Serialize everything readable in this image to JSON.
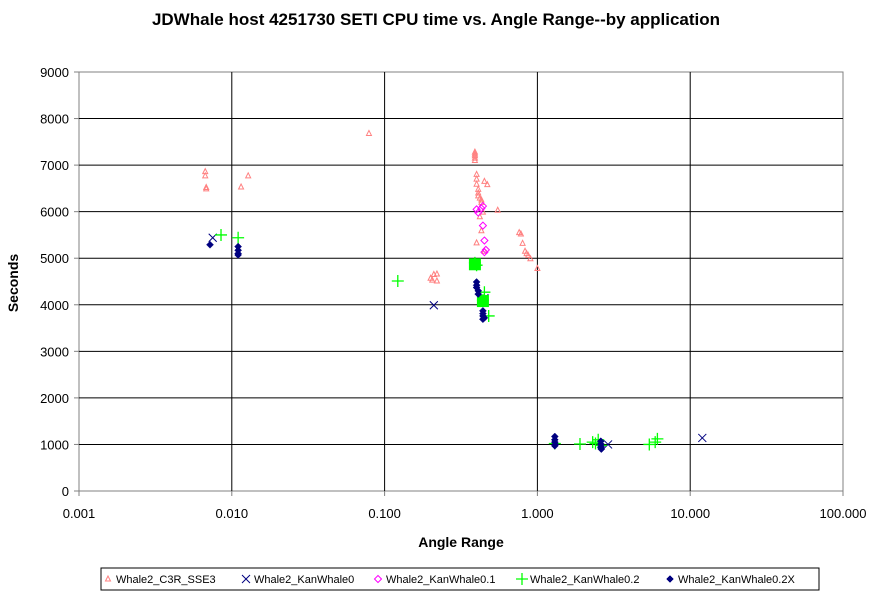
{
  "chart_data": {
    "type": "scatter",
    "title": "JDWhale host 4251730 SETI CPU time vs. Angle Range--by application",
    "xlabel": "Angle Range",
    "ylabel": "Seconds",
    "xscale": "log",
    "xlim": [
      0.001,
      100
    ],
    "ylim": [
      0,
      9000
    ],
    "x_ticks": [
      "0.001",
      "0.010",
      "0.100",
      "1.000",
      "10.000",
      "100.000"
    ],
    "y_ticks": [
      "0",
      "1000",
      "2000",
      "3000",
      "4000",
      "5000",
      "6000",
      "7000",
      "8000",
      "9000"
    ],
    "grid": true,
    "legend_position": "bottom",
    "series": [
      {
        "name": "Whale2_C3R_SSE3",
        "color": "#ff8080",
        "marker": "triangle",
        "points": [
          [
            0.0067,
            6860
          ],
          [
            0.0067,
            6770
          ],
          [
            0.0068,
            6520
          ],
          [
            0.0068,
            6490
          ],
          [
            0.0115,
            6530
          ],
          [
            0.0128,
            6770
          ],
          [
            0.079,
            7680
          ],
          [
            0.2,
            4570
          ],
          [
            0.21,
            4650
          ],
          [
            0.205,
            4530
          ],
          [
            0.22,
            4510
          ],
          [
            0.22,
            4660
          ],
          [
            0.39,
            7280
          ],
          [
            0.39,
            7240
          ],
          [
            0.39,
            7200
          ],
          [
            0.39,
            7150
          ],
          [
            0.39,
            7100
          ],
          [
            0.4,
            6800
          ],
          [
            0.4,
            6700
          ],
          [
            0.4,
            6590
          ],
          [
            0.41,
            6480
          ],
          [
            0.41,
            6400
          ],
          [
            0.41,
            6340
          ],
          [
            0.42,
            6290
          ],
          [
            0.43,
            6250
          ],
          [
            0.43,
            6200
          ],
          [
            0.45,
            6650
          ],
          [
            0.47,
            6580
          ],
          [
            0.44,
            5990
          ],
          [
            0.42,
            5890
          ],
          [
            0.43,
            5590
          ],
          [
            0.4,
            5330
          ],
          [
            0.45,
            5150
          ],
          [
            0.55,
            6030
          ],
          [
            0.76,
            5550
          ],
          [
            0.78,
            5520
          ],
          [
            0.8,
            5320
          ],
          [
            0.83,
            5150
          ],
          [
            0.85,
            5100
          ],
          [
            0.87,
            5060
          ],
          [
            0.9,
            4990
          ],
          [
            1.0,
            4780
          ]
        ]
      },
      {
        "name": "Whale2_KanWhale0",
        "color": "#000080",
        "marker": "x",
        "points": [
          [
            0.0075,
            5440
          ],
          [
            0.21,
            3990
          ],
          [
            0.45,
            4140
          ],
          [
            2.9,
            1000
          ],
          [
            12.0,
            1140
          ]
        ]
      },
      {
        "name": "Whale2_KanWhale0.1",
        "color": "#ff00ff",
        "marker": "diamond",
        "points": [
          [
            0.4,
            6050
          ],
          [
            0.41,
            5980
          ],
          [
            0.43,
            6070
          ],
          [
            0.44,
            6120
          ],
          [
            0.44,
            5700
          ],
          [
            0.45,
            5380
          ],
          [
            0.45,
            5130
          ],
          [
            0.46,
            5180
          ]
        ]
      },
      {
        "name": "Whale2_KanWhale0.2",
        "color": "#00ff00",
        "marker": "plus",
        "points": [
          [
            0.0085,
            5500
          ],
          [
            0.011,
            5440
          ],
          [
            0.122,
            4510
          ],
          [
            0.39,
            4900
          ],
          [
            0.4,
            4850
          ],
          [
            0.44,
            4100
          ],
          [
            0.45,
            4270
          ],
          [
            0.48,
            3760
          ],
          [
            1.3,
            1020
          ],
          [
            1.9,
            1010
          ],
          [
            2.3,
            1050
          ],
          [
            2.5,
            1100
          ],
          [
            2.6,
            980
          ],
          [
            5.4,
            1000
          ],
          [
            5.9,
            1050
          ],
          [
            6.1,
            1120
          ],
          [
            2.4,
            1020
          ]
        ]
      },
      {
        "name": "Whale2_KanWhale0.2X",
        "color": "#000080",
        "marker": "filled-diamond",
        "points": [
          [
            0.0072,
            5290
          ],
          [
            0.011,
            5250
          ],
          [
            0.011,
            5170
          ],
          [
            0.011,
            5100
          ],
          [
            0.011,
            5070
          ],
          [
            0.4,
            4490
          ],
          [
            0.4,
            4420
          ],
          [
            0.4,
            4370
          ],
          [
            0.41,
            4300
          ],
          [
            0.41,
            4230
          ],
          [
            0.44,
            3870
          ],
          [
            0.44,
            3810
          ],
          [
            0.44,
            3760
          ],
          [
            0.45,
            3720
          ],
          [
            0.44,
            3690
          ],
          [
            1.3,
            1170
          ],
          [
            1.3,
            1100
          ],
          [
            1.3,
            1050
          ],
          [
            1.31,
            1000
          ],
          [
            1.3,
            970
          ],
          [
            2.6,
            1070
          ],
          [
            2.6,
            1010
          ],
          [
            2.61,
            960
          ],
          [
            2.6,
            930
          ],
          [
            2.62,
            900
          ]
        ]
      }
    ]
  }
}
